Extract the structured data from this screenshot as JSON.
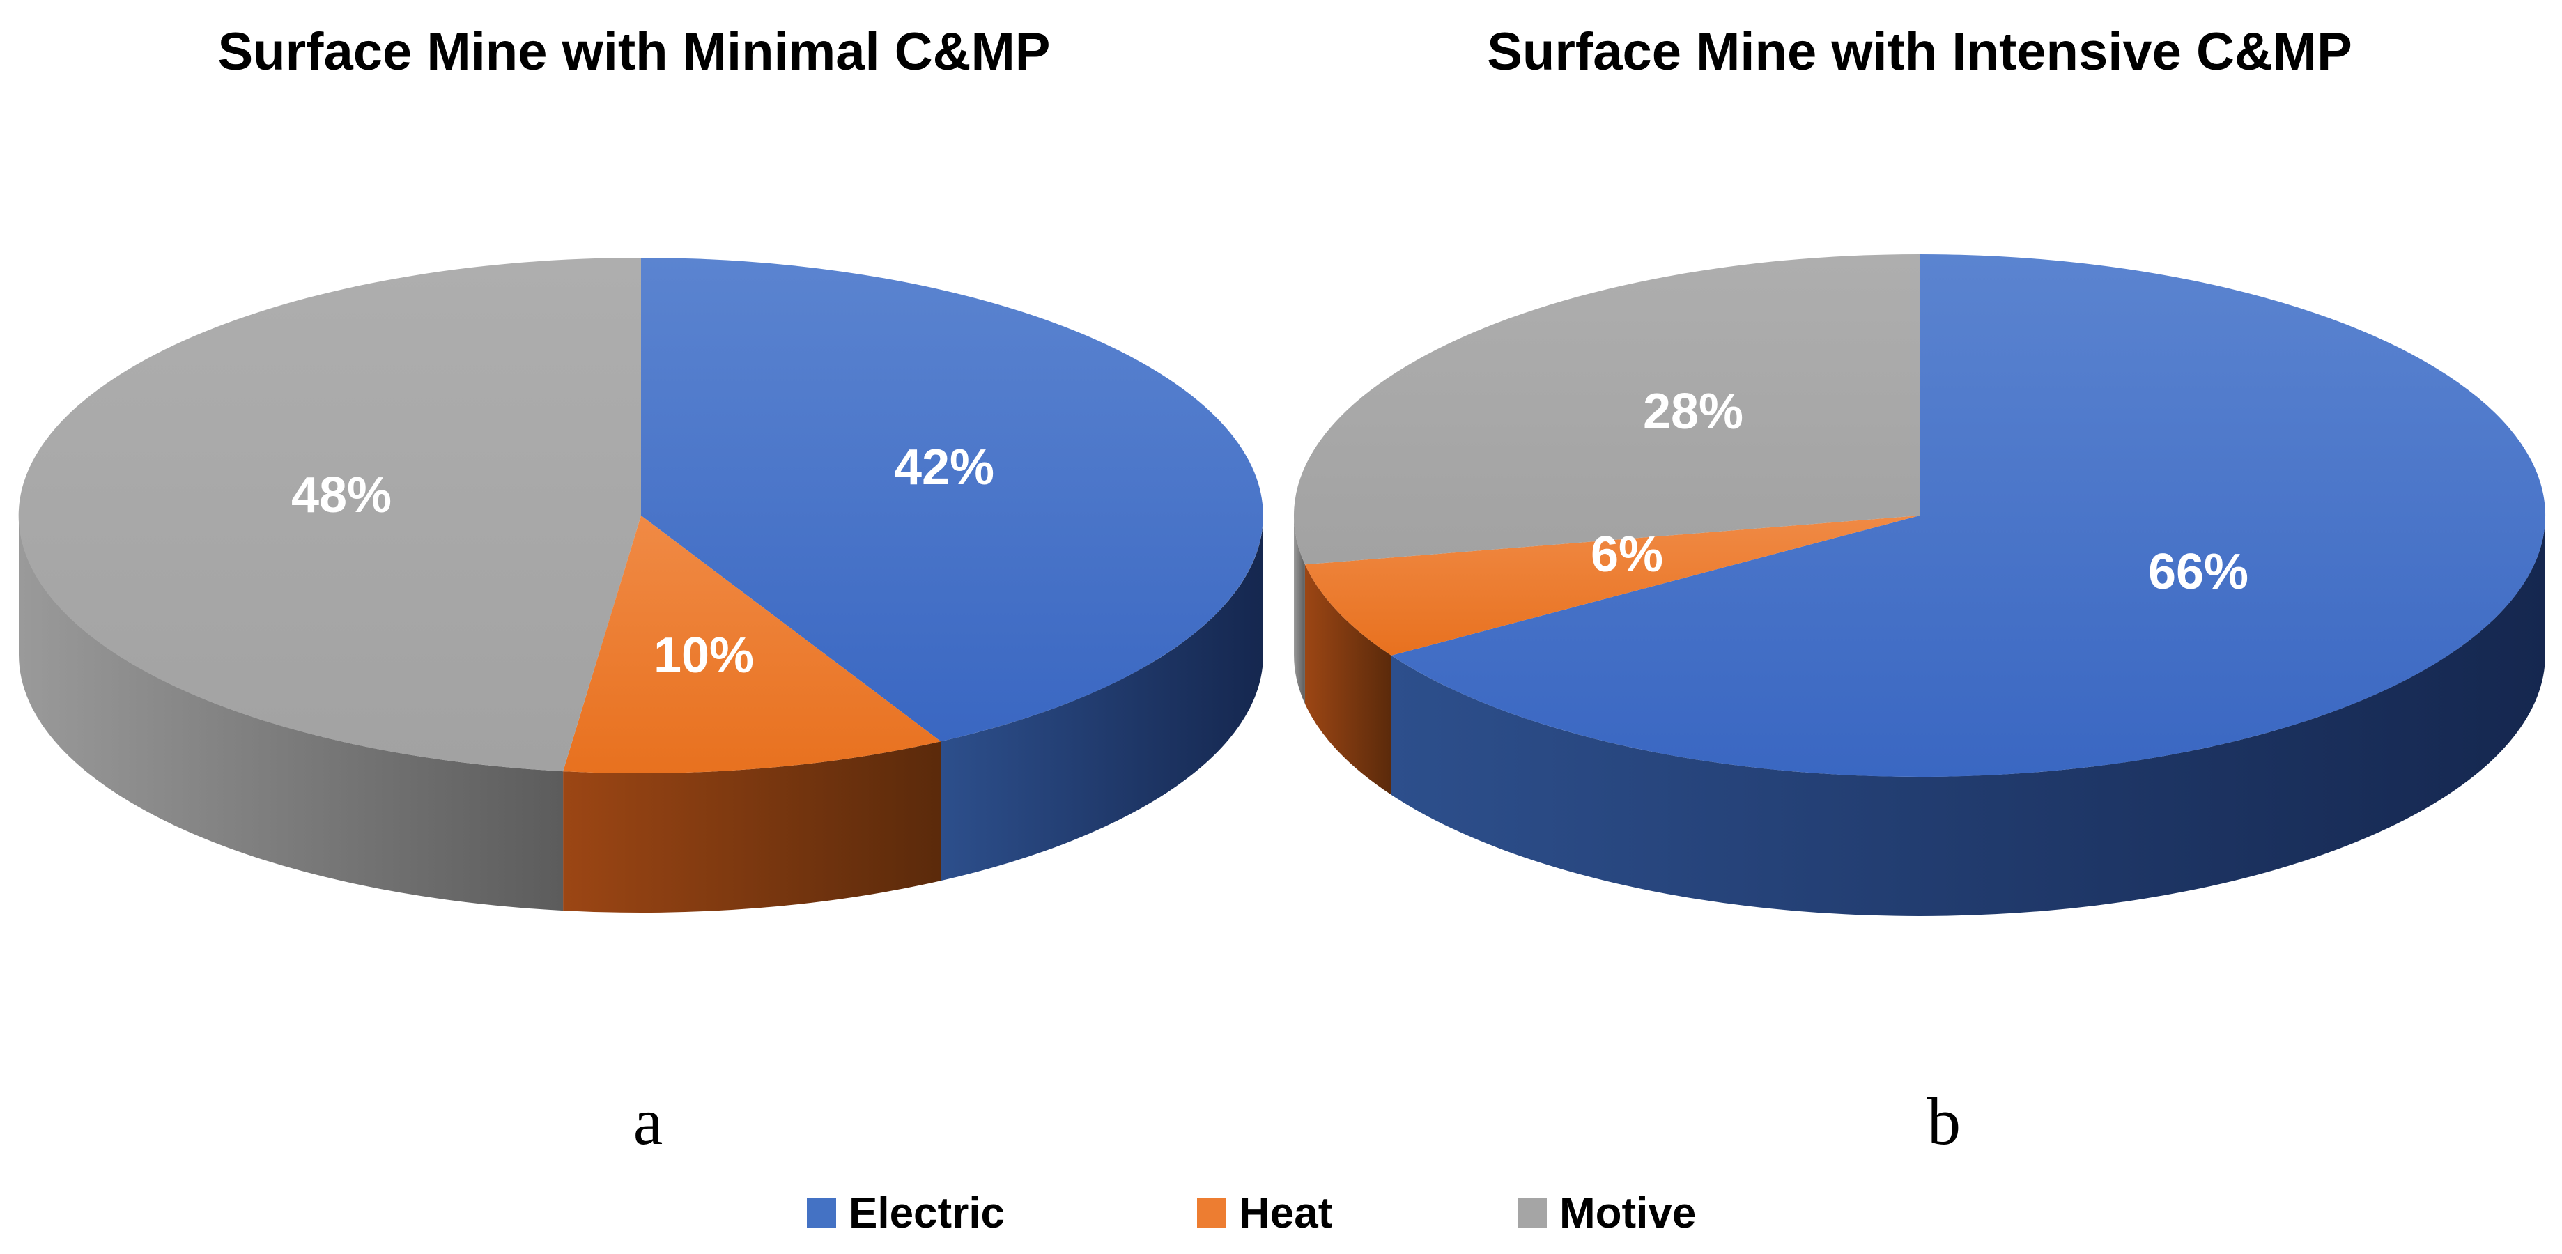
{
  "chart_data": [
    {
      "type": "pie",
      "title": "Surface Mine with Minimal C&MP",
      "panel": "a",
      "categories": [
        "Electric",
        "Heat",
        "Motive"
      ],
      "values": [
        42,
        10,
        48
      ],
      "labels": [
        "42%",
        "10%",
        "48%"
      ]
    },
    {
      "type": "pie",
      "title": "Surface Mine with Intensive C&MP",
      "panel": "b",
      "categories": [
        "Electric",
        "Heat",
        "Motive"
      ],
      "values": [
        66,
        6,
        28
      ],
      "labels": [
        "66%",
        "6%",
        "28%"
      ]
    }
  ],
  "legend": {
    "position": "bottom-center",
    "items": [
      {
        "label": "Electric",
        "color": "#4472C4"
      },
      {
        "label": "Heat",
        "color": "#ED7D31"
      },
      {
        "label": "Motive",
        "color": "#A5A5A5"
      }
    ]
  },
  "colors": {
    "Electric": {
      "top_light": "#5B84D0",
      "top": "#3A67C2",
      "side_light": "#2D4F8C",
      "side_dark": "#15274F"
    },
    "Heat": {
      "top_light": "#F08A45",
      "top": "#E8711F",
      "side_light": "#9C4614",
      "side_dark": "#5B2A0B"
    },
    "Motive": {
      "top_light": "#AEAEAE",
      "top": "#A2A2A2",
      "side_light": "#9A9A9A",
      "side_dark": "#5C5C5C"
    }
  }
}
